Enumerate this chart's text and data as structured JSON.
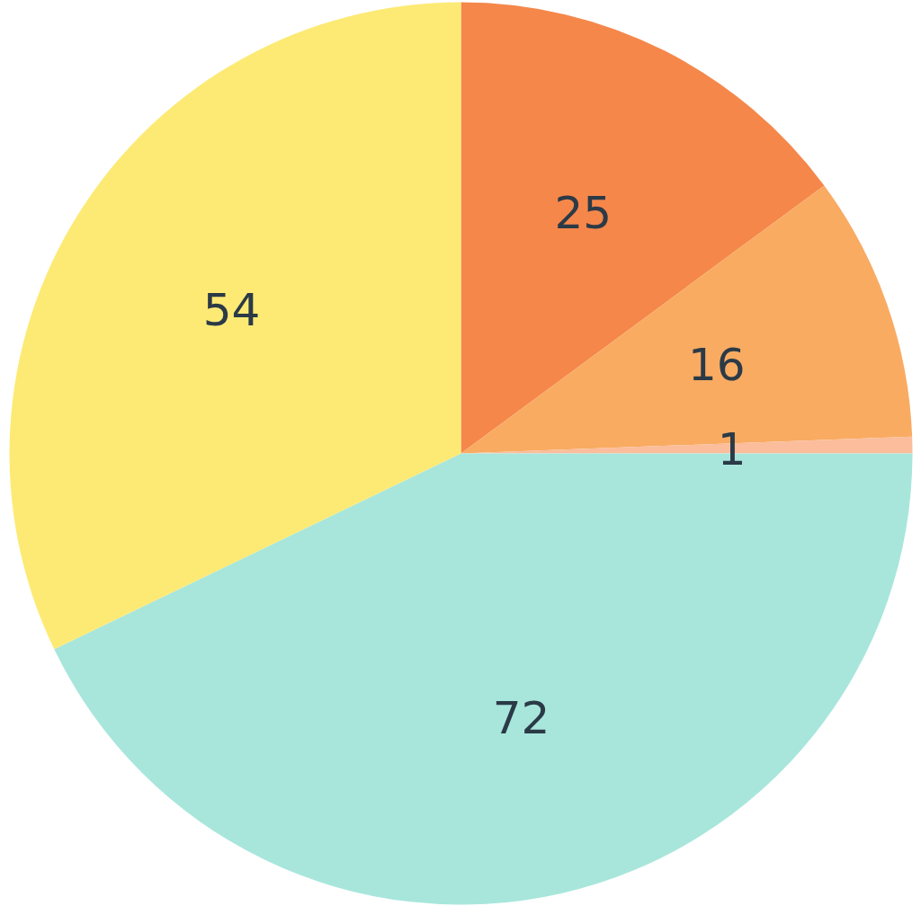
{
  "chart_data": {
    "type": "pie",
    "values": [
      25,
      16,
      1,
      72,
      54
    ],
    "colors": [
      "#f5874a",
      "#f9ab62",
      "#fbbd9b",
      "#a8e6dc",
      "#fdea74"
    ],
    "data_labels": true
  }
}
